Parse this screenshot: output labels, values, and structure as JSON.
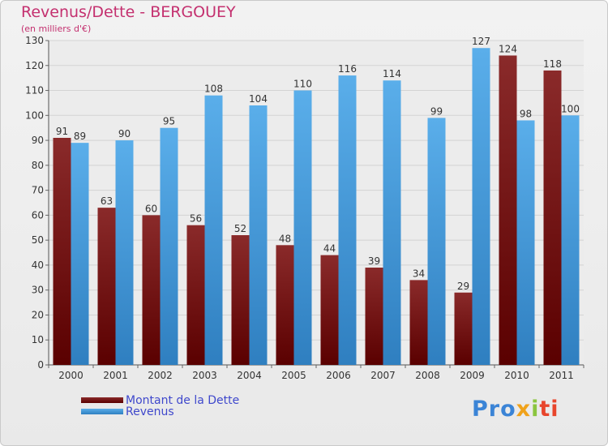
{
  "chart_data": {
    "type": "bar",
    "title": "Revenus/Dette - BERGOUEY",
    "subtitle": "(en milliers d'€)",
    "categories": [
      "2000",
      "2001",
      "2002",
      "2003",
      "2004",
      "2005",
      "2006",
      "2007",
      "2008",
      "2009",
      "2010",
      "2011"
    ],
    "series": [
      {
        "name": "Montant de la Dette",
        "values": [
          91,
          63,
          60,
          56,
          52,
          48,
          44,
          39,
          34,
          29,
          124,
          118
        ],
        "color": "#7a1616"
      },
      {
        "name": "Revenus",
        "values": [
          89,
          90,
          95,
          108,
          104,
          110,
          116,
          114,
          99,
          127,
          98,
          100
        ],
        "color": "#4ea3e6"
      }
    ],
    "ylim": [
      0,
      130
    ],
    "yticks": [
      0,
      10,
      20,
      30,
      40,
      50,
      60,
      70,
      80,
      90,
      100,
      110,
      120,
      130
    ],
    "grid": true,
    "legend_position": "bottom-left"
  },
  "brand": {
    "p1": "Pro",
    "p2": "x",
    "p3": "i",
    "p4": "ti"
  },
  "colors": {
    "title": "#c4306f",
    "legend_text": "#3f48cc"
  }
}
